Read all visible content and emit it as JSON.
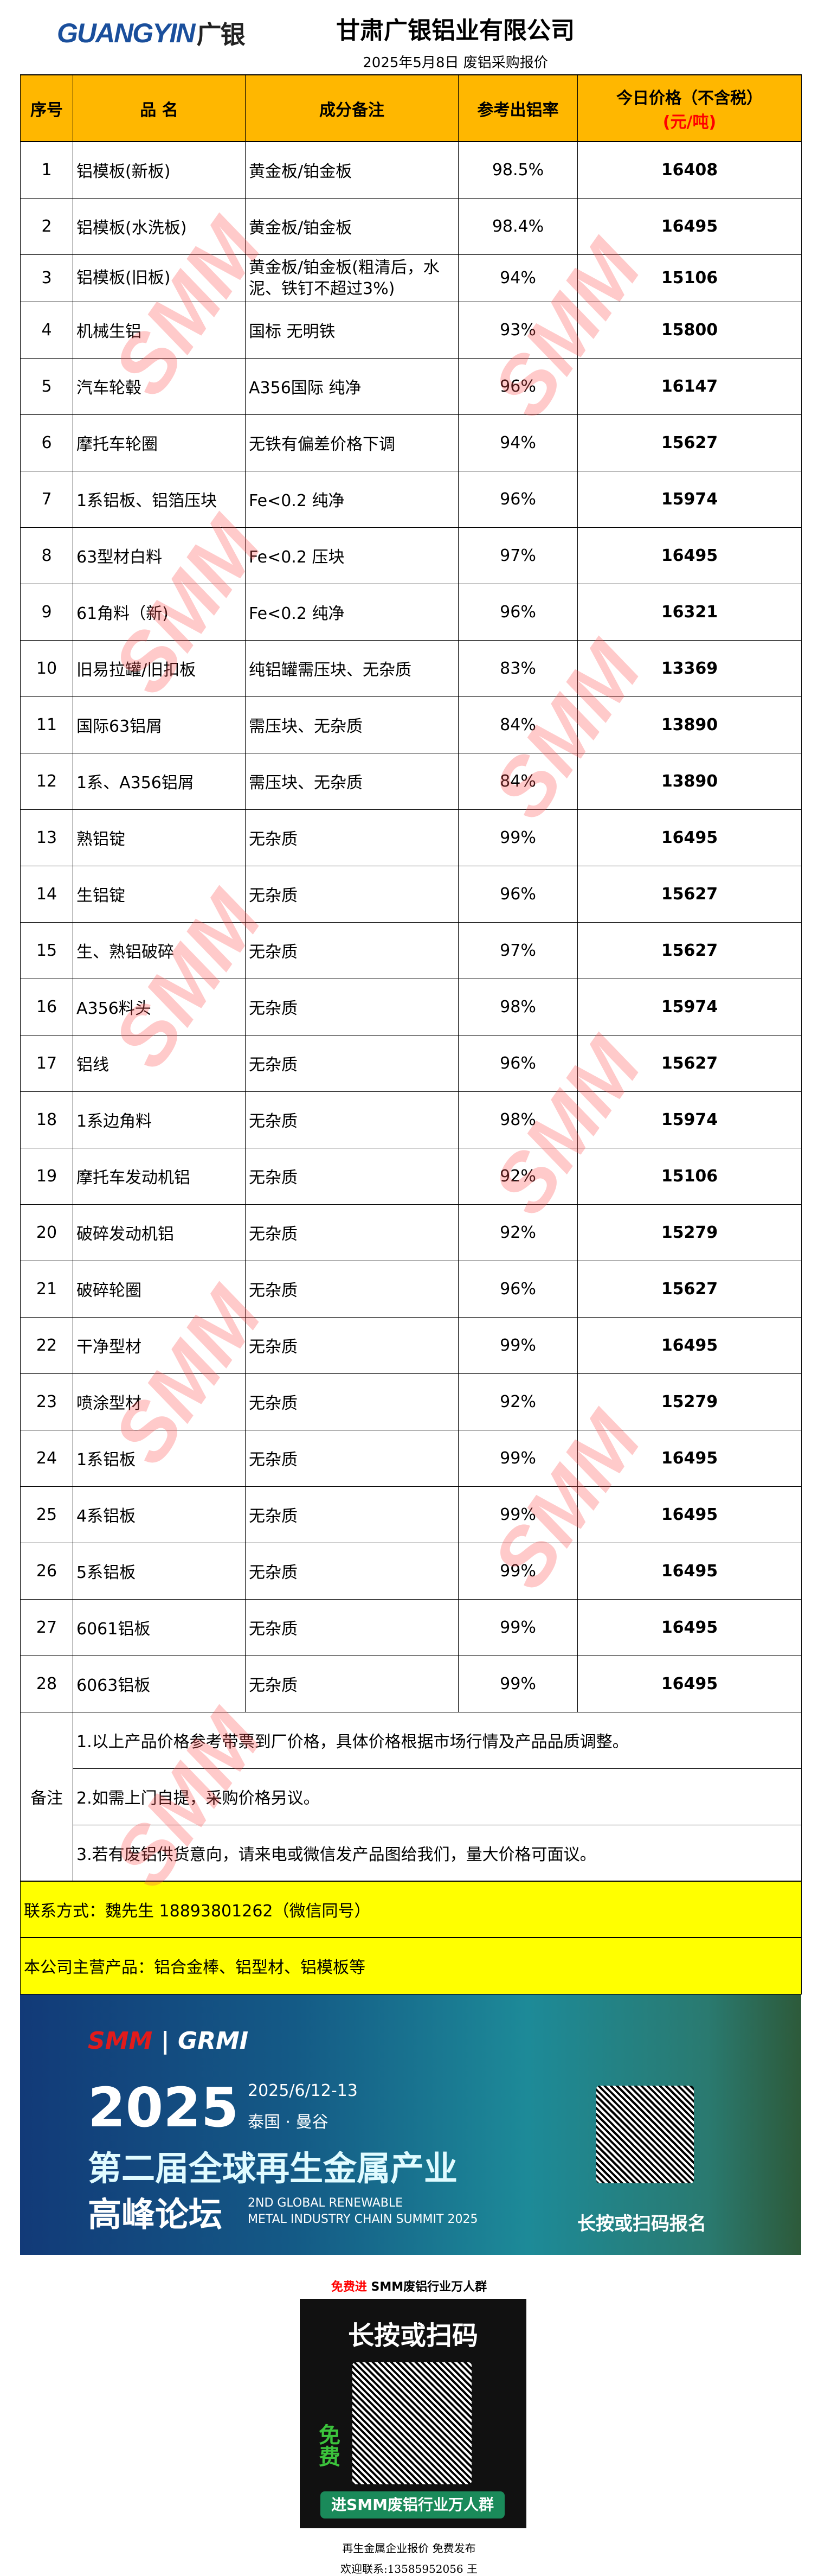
{
  "header": {
    "logo_en": "GUANGYIN",
    "logo_cn": "广银",
    "company": "甘肃广银铝业有限公司",
    "subtitle": "2025年5月8日 废铝采购报价"
  },
  "columns": {
    "no": "序号",
    "name": "品  名",
    "spec": "成分备注",
    "rate": "参考出铝率",
    "price": "今日价格（不含税）",
    "unit": "(元/吨)"
  },
  "rows": [
    {
      "no": "1",
      "name": "铝模板(新板)",
      "spec": "黄金板/铂金板",
      "rate": "98.5%",
      "price": "16408"
    },
    {
      "no": "2",
      "name": "铝模板(水洗板)",
      "spec": "黄金板/铂金板",
      "rate": "98.4%",
      "price": "16495"
    },
    {
      "no": "3",
      "name": "铝模板(旧板)",
      "spec": "黄金板/铂金板(粗清后，水泥、铁钉不超过3%)",
      "rate": "94%",
      "price": "15106"
    },
    {
      "no": "4",
      "name": "机械生铝",
      "spec": "国标 无明铁",
      "rate": "93%",
      "price": "15800"
    },
    {
      "no": "5",
      "name": "汽车轮毂",
      "spec": "A356国际 纯净",
      "rate": "96%",
      "price": "16147"
    },
    {
      "no": "6",
      "name": "摩托车轮圈",
      "spec": "无铁有偏差价格下调",
      "rate": "94%",
      "price": "15627"
    },
    {
      "no": "7",
      "name": "1系铝板、铝箔压块",
      "spec": "Fe<0.2 纯净",
      "rate": "96%",
      "price": "15974"
    },
    {
      "no": "8",
      "name": "63型材白料",
      "spec": "Fe<0.2 压块",
      "rate": "97%",
      "price": "16495"
    },
    {
      "no": "9",
      "name": "61角料（新)",
      "spec": "Fe<0.2 纯净",
      "rate": "96%",
      "price": "16321"
    },
    {
      "no": "10",
      "name": "旧易拉罐/旧扣板",
      "spec": "纯铝罐需压块、无杂质",
      "rate": "83%",
      "price": "13369"
    },
    {
      "no": "11",
      "name": "国际63铝屑",
      "spec": "需压块、无杂质",
      "rate": "84%",
      "price": "13890"
    },
    {
      "no": "12",
      "name": "1系、A356铝屑",
      "spec": "需压块、无杂质",
      "rate": "84%",
      "price": "13890"
    },
    {
      "no": "13",
      "name": "熟铝锭",
      "spec": "无杂质",
      "rate": "99%",
      "price": "16495"
    },
    {
      "no": "14",
      "name": "生铝锭",
      "spec": "无杂质",
      "rate": "96%",
      "price": "15627"
    },
    {
      "no": "15",
      "name": "生、熟铝破碎",
      "spec": "无杂质",
      "rate": "97%",
      "price": "15627"
    },
    {
      "no": "16",
      "name": "A356料头",
      "spec": "无杂质",
      "rate": "98%",
      "price": "15974"
    },
    {
      "no": "17",
      "name": "铝线",
      "spec": "无杂质",
      "rate": "96%",
      "price": "15627"
    },
    {
      "no": "18",
      "name": "1系边角料",
      "spec": "无杂质",
      "rate": "98%",
      "price": "15974"
    },
    {
      "no": "19",
      "name": "摩托车发动机铝",
      "spec": "无杂质",
      "rate": "92%",
      "price": "15106"
    },
    {
      "no": "20",
      "name": "破碎发动机铝",
      "spec": "无杂质",
      "rate": "92%",
      "price": "15279"
    },
    {
      "no": "21",
      "name": "破碎轮圈",
      "spec": "无杂质",
      "rate": "96%",
      "price": "15627"
    },
    {
      "no": "22",
      "name": "干净型材",
      "spec": "无杂质",
      "rate": "99%",
      "price": "16495"
    },
    {
      "no": "23",
      "name": "喷涂型材",
      "spec": "无杂质",
      "rate": "92%",
      "price": "15279"
    },
    {
      "no": "24",
      "name": "1系铝板",
      "spec": "无杂质",
      "rate": "99%",
      "price": "16495"
    },
    {
      "no": "25",
      "name": "4系铝板",
      "spec": "无杂质",
      "rate": "99%",
      "price": "16495"
    },
    {
      "no": "26",
      "name": "5系铝板",
      "spec": "无杂质",
      "rate": "99%",
      "price": "16495"
    },
    {
      "no": "27",
      "name": "6061铝板",
      "spec": "无杂质",
      "rate": "99%",
      "price": "16495"
    },
    {
      "no": "28",
      "name": "6063铝板",
      "spec": "无杂质",
      "rate": "99%",
      "price": "16495"
    }
  ],
  "remarks": {
    "label": "备注",
    "items": [
      "1.以上产品价格参考带票到厂价格，具体价格根据市场行情及产品品质调整。",
      "2.如需上门自提，采购价格另议。",
      "3.若有废铝供货意向，请来电或微信发产品图给我们，量大价格可面议。"
    ]
  },
  "contact": "联系方式：魏先生 18893801262（微信同号）",
  "products": "本公司主营产品：铝合金棒、铝型材、铝模板等",
  "watermark": "SMM",
  "banner": {
    "logo_smm": "SMM",
    "logo_grmi": "GRMI",
    "year": "2025",
    "date": "2025/6/12-13",
    "place": "泰国 · 曼谷",
    "headline1": "第二届全球再生金属产业",
    "headline2": "高峰论坛",
    "en1": "2ND GLOBAL RENEWABLE",
    "en2": "METAL INDUSTRY CHAIN SUMMIT 2025",
    "cta": "长按或扫码报名"
  },
  "group": {
    "title_red": "免费进",
    "title": " SMM废铝行业万人群",
    "poster_big": "长按或扫码",
    "poster_free": "免费",
    "poster_btn": "进SMM废铝行业万人群",
    "line1": "再生金属企业报价  免费发布",
    "line2": "欢迎联系:13585952056  王"
  }
}
